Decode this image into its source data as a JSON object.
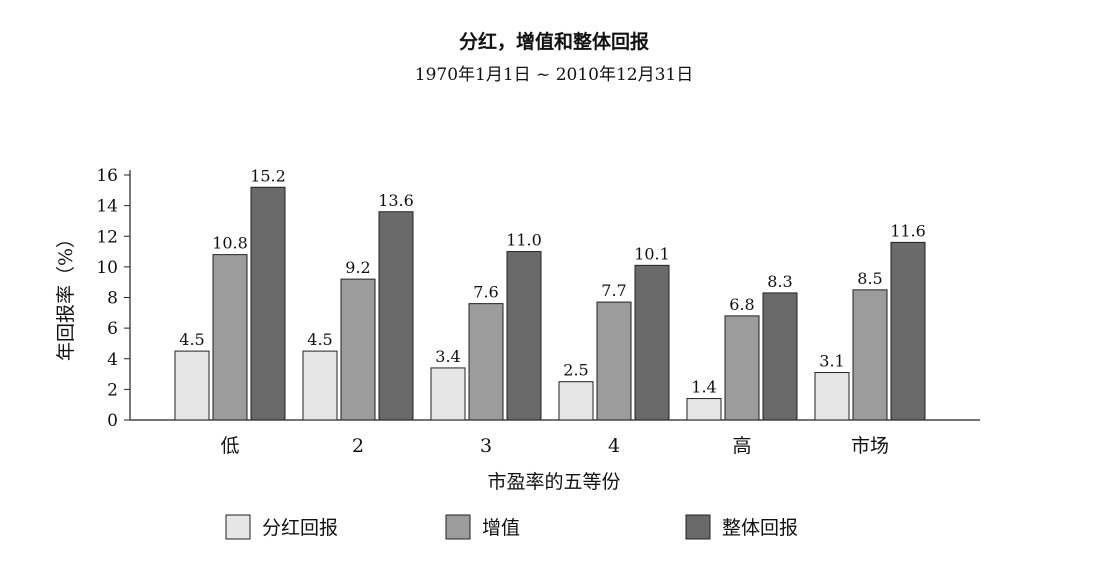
{
  "chart_data": {
    "type": "bar",
    "title": "分红，增值和整体回报",
    "subtitle": "1970年1月1日 ~ 2010年12月31日",
    "ylabel": "年回报率（%）",
    "xlabel": "市盈率的五等份",
    "ylim": [
      0,
      16
    ],
    "yticks": [
      "0",
      "2",
      "4",
      "6",
      "8",
      "10",
      "12",
      "14",
      "16"
    ],
    "categories": [
      "低",
      "2",
      "3",
      "4",
      "高",
      "市场"
    ],
    "series": [
      {
        "name": "分红回报",
        "values": [
          4.5,
          4.5,
          3.4,
          2.5,
          1.4,
          3.1
        ],
        "labels": [
          "4.5",
          "4.5",
          "3.4",
          "2.5",
          "1.4",
          "3.1"
        ],
        "color": "#e6e6e6"
      },
      {
        "name": "增值",
        "values": [
          10.8,
          9.2,
          7.6,
          7.7,
          6.8,
          8.5
        ],
        "labels": [
          "10.8",
          "9.2",
          "7.6",
          "7.7",
          "6.8",
          "8.5"
        ],
        "color": "#9c9c9c"
      },
      {
        "name": "整体回报",
        "values": [
          15.2,
          13.6,
          11.0,
          10.1,
          8.3,
          11.6
        ],
        "labels": [
          "15.2",
          "13.6",
          "11.0",
          "10.1",
          "8.3",
          "11.6"
        ],
        "color": "#6a6a6a"
      }
    ],
    "grid": false,
    "legend_position": "bottom"
  }
}
